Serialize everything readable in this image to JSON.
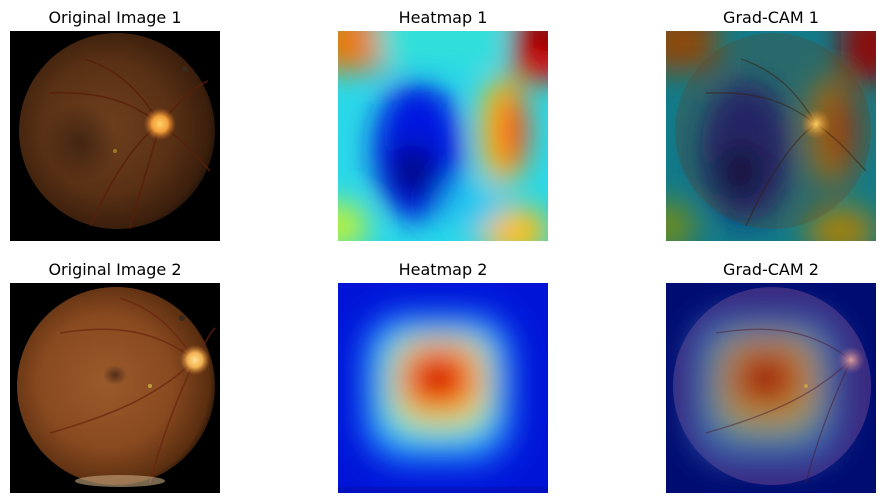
{
  "figure": {
    "panels": [
      {
        "title": "Original Image 1",
        "image": "fundus-photo-1"
      },
      {
        "title": "Heatmap 1",
        "image": "heatmap-1"
      },
      {
        "title": "Grad-CAM 1",
        "image": "gradcam-overlay-1"
      },
      {
        "title": "Original Image 2",
        "image": "fundus-photo-2"
      },
      {
        "title": "Heatmap 2",
        "image": "heatmap-2"
      },
      {
        "title": "Grad-CAM 2",
        "image": "gradcam-overlay-2"
      }
    ]
  }
}
